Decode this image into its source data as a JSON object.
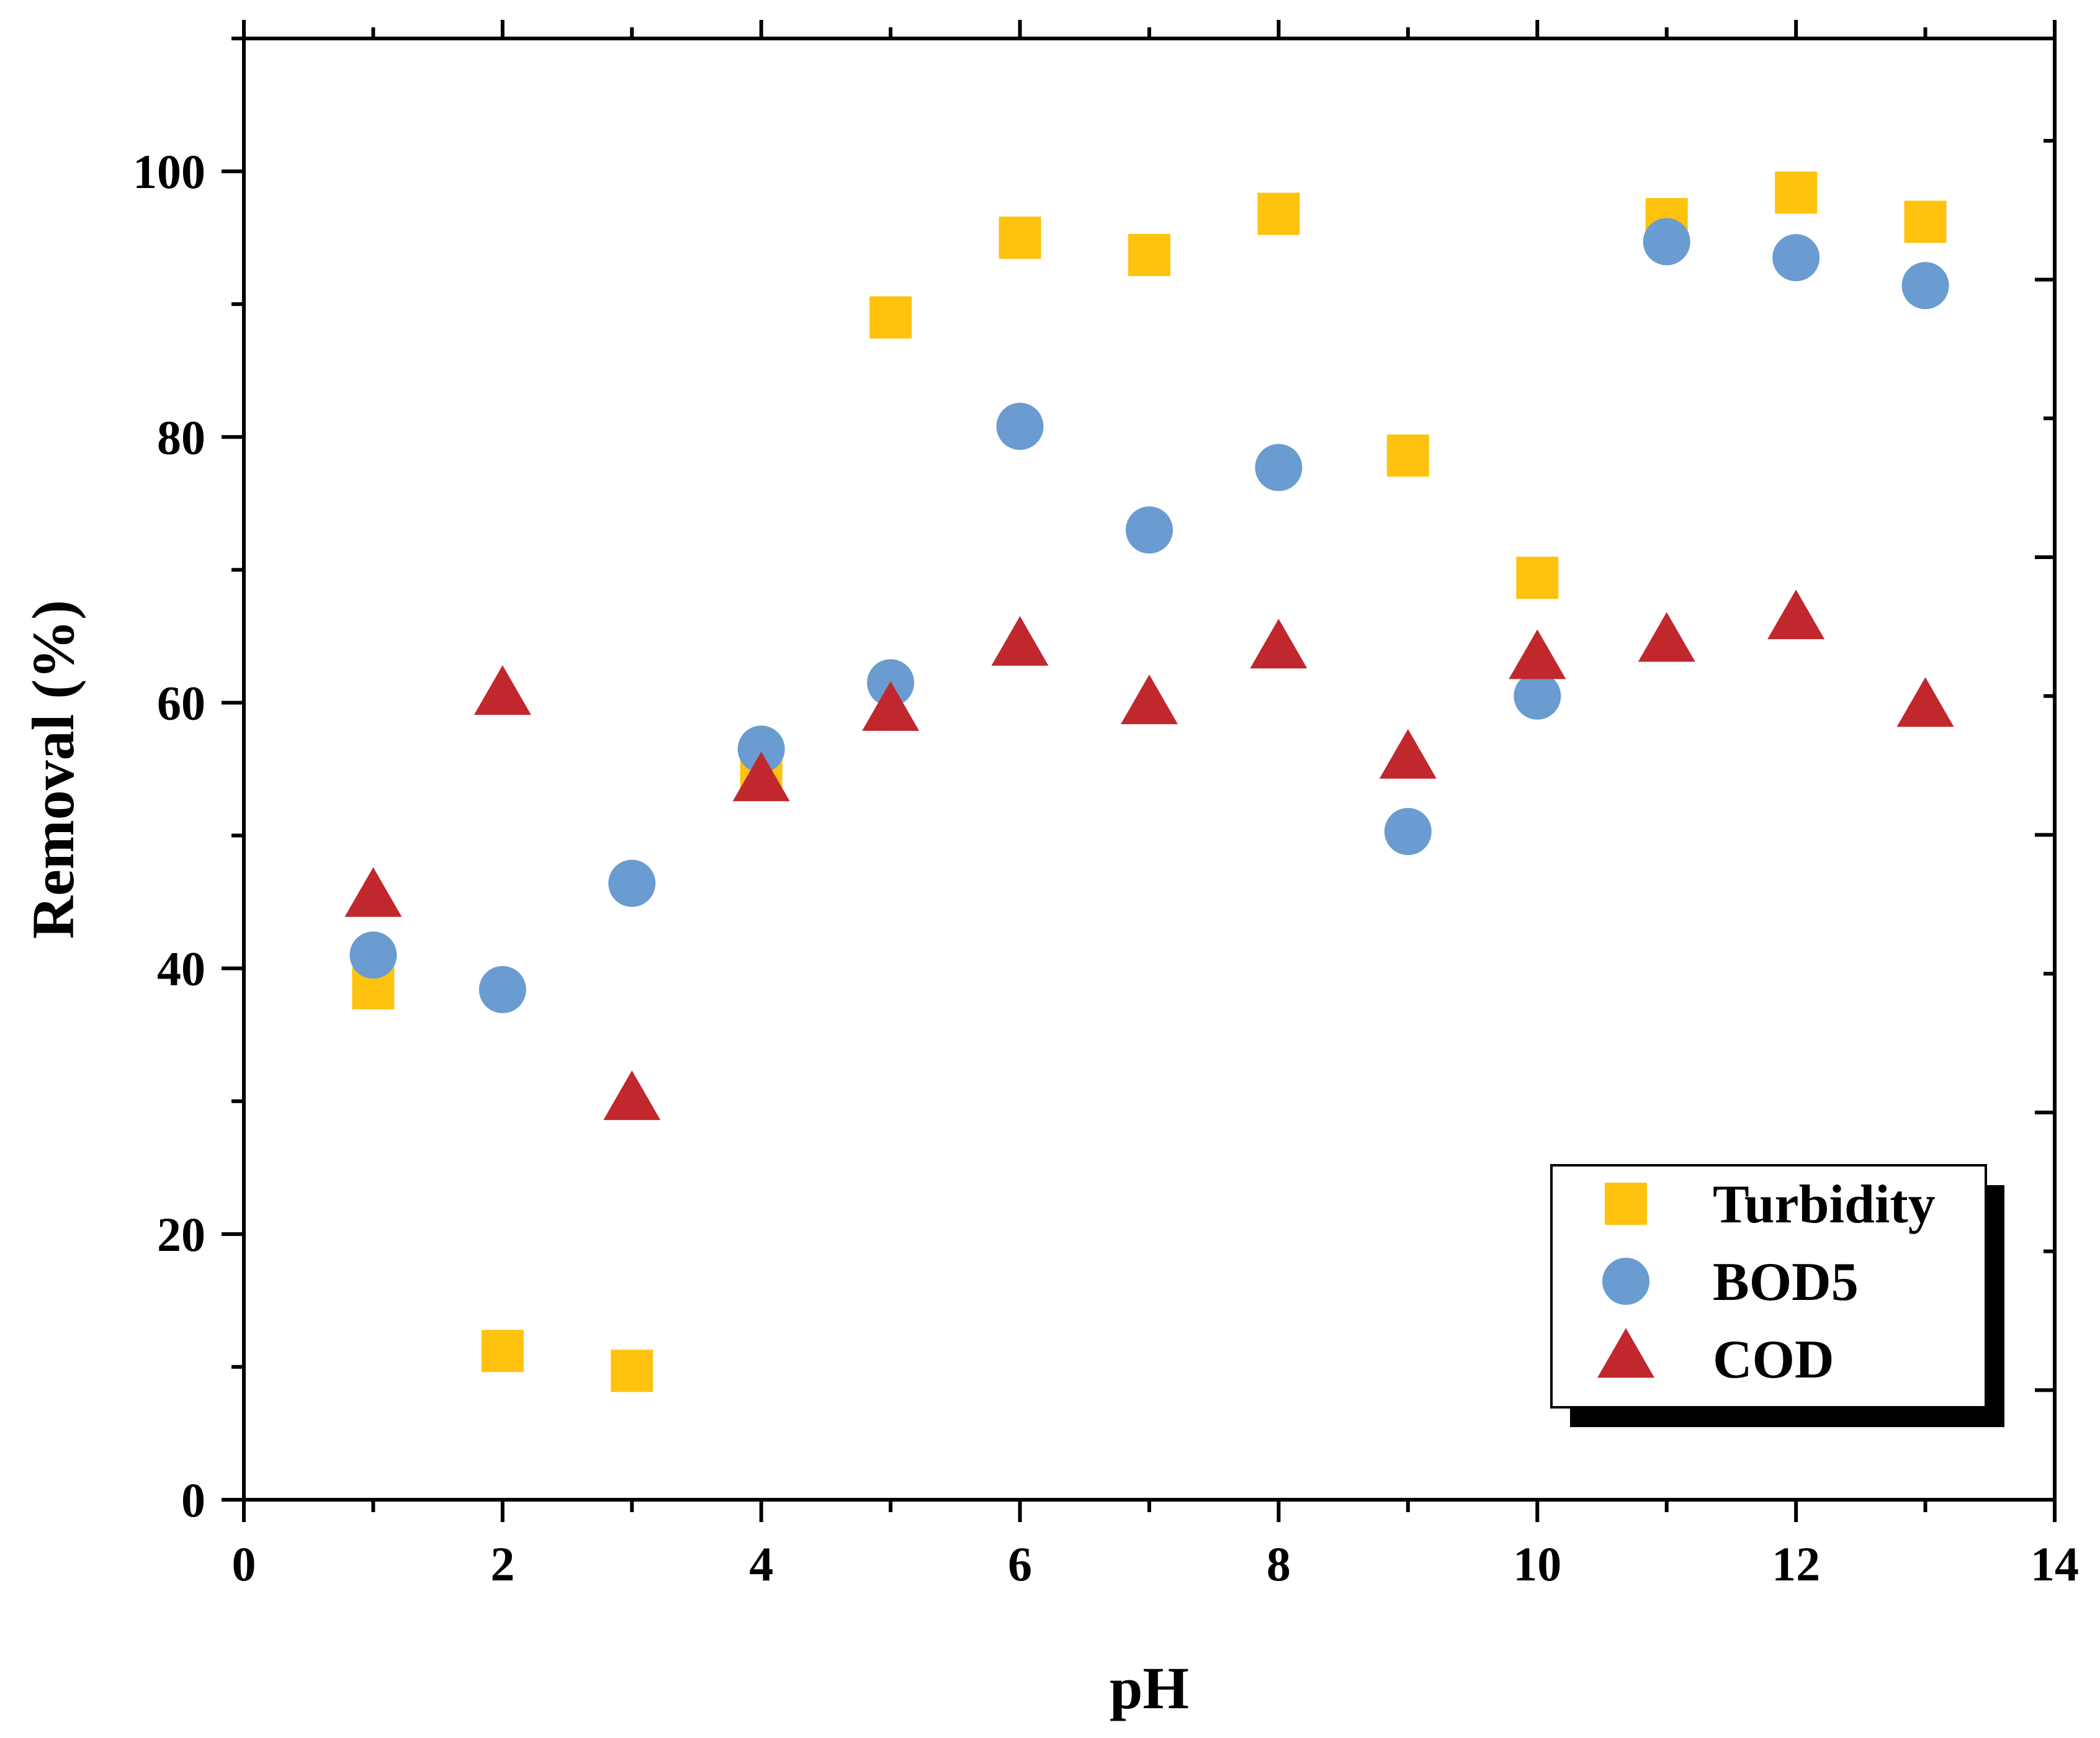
{
  "chart_data": {
    "type": "scatter",
    "title": "",
    "xlabel": "pH",
    "ylabel": "Removal (%)",
    "xlim": [
      0,
      14
    ],
    "ylim": [
      0,
      110
    ],
    "x_ticks": [
      0,
      2,
      4,
      6,
      8,
      10,
      12,
      14
    ],
    "y_ticks": [
      0,
      20,
      40,
      60,
      80,
      100
    ],
    "x_tick_labels": [
      "0",
      "2",
      "4",
      "6",
      "8",
      "10",
      "12",
      "14"
    ],
    "y_tick_labels": [
      "0",
      "20",
      "40",
      "60",
      "80",
      "100"
    ],
    "grid": false,
    "legend_position": "bottom-right",
    "series": [
      {
        "name": "Turbidity",
        "marker": "square",
        "color": "#FFC20E",
        "x": [
          1,
          2,
          3,
          4,
          5,
          6,
          7,
          8,
          9,
          10,
          11,
          12,
          13
        ],
        "y": [
          38.5,
          11.2,
          9.7,
          55.0,
          89.0,
          95.0,
          93.7,
          96.8,
          78.6,
          69.4,
          96.4,
          98.4,
          96.2
        ]
      },
      {
        "name": "BOD5",
        "marker": "circle",
        "color": "#6A9BD1",
        "x": [
          1,
          2,
          3,
          4,
          5,
          6,
          7,
          8,
          9,
          10,
          11,
          12,
          13
        ],
        "y": [
          41.0,
          38.4,
          46.4,
          56.5,
          61.5,
          80.8,
          73.0,
          77.7,
          50.3,
          60.5,
          94.7,
          93.5,
          91.4
        ]
      },
      {
        "name": "COD",
        "marker": "triangle",
        "color": "#C0282D",
        "x": [
          1,
          2,
          3,
          4,
          5,
          6,
          7,
          8,
          9,
          10,
          11,
          12,
          13
        ],
        "y": [
          45.3,
          60.5,
          30.0,
          54.0,
          59.3,
          64.2,
          59.8,
          64.0,
          55.7,
          63.2,
          64.5,
          66.2,
          59.6
        ]
      }
    ]
  }
}
